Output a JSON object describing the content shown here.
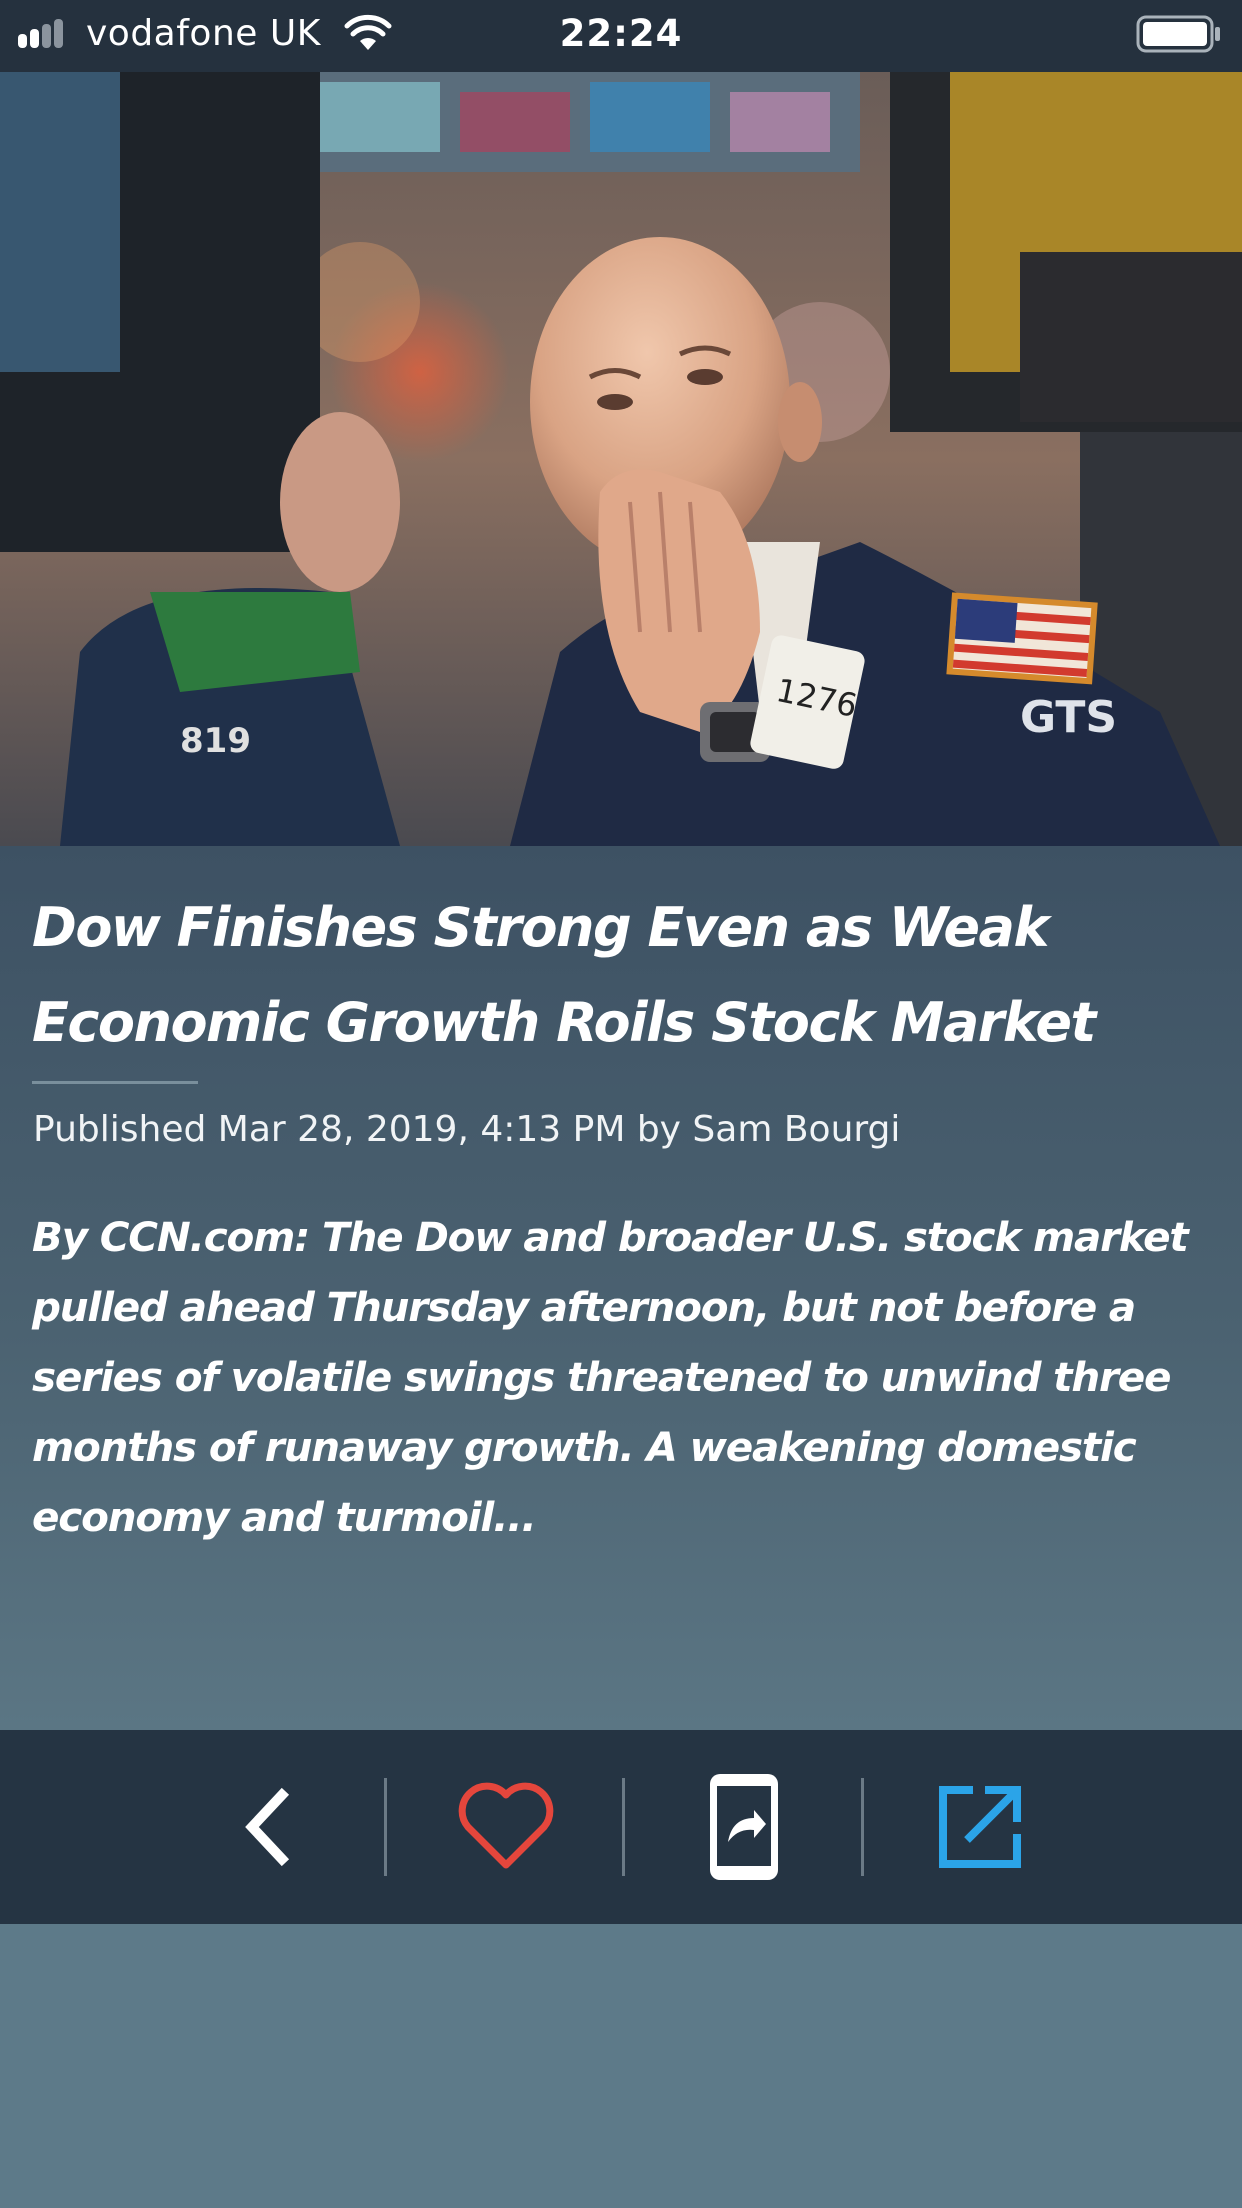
{
  "status_bar": {
    "carrier": "vodafone UK",
    "time": "22:24",
    "signal_icon": "signal-bars-icon",
    "wifi_icon": "wifi-icon",
    "battery_icon": "battery-full-icon"
  },
  "article": {
    "image_description_icon": "article-photo",
    "title": "Dow Finishes Strong Even as Weak Economic Growth Roils Stock Market",
    "byline": "Published Mar 28, 2019, 4:13 PM by Sam Bourgi",
    "summary": "By CCN.com: The Dow and broader U.S. stock market pulled ahead Thursday afternoon, but not before a series of volatile swings threatened to unwind three months of runaway growth. A weakening domestic economy and turmoil..."
  },
  "toolbar": {
    "back_icon": "chevron-left-icon",
    "favorite_icon": "heart-icon",
    "share_icon": "phone-share-icon",
    "open_external_icon": "external-link-icon",
    "colors": {
      "back": "#ffffff",
      "favorite": "#e5463c",
      "share": "#ffffff",
      "external": "#2ba4e8"
    }
  },
  "photo_text": {
    "badge_number": "1276",
    "jacket_logo": "GTS",
    "left_jacket_number": "819"
  }
}
